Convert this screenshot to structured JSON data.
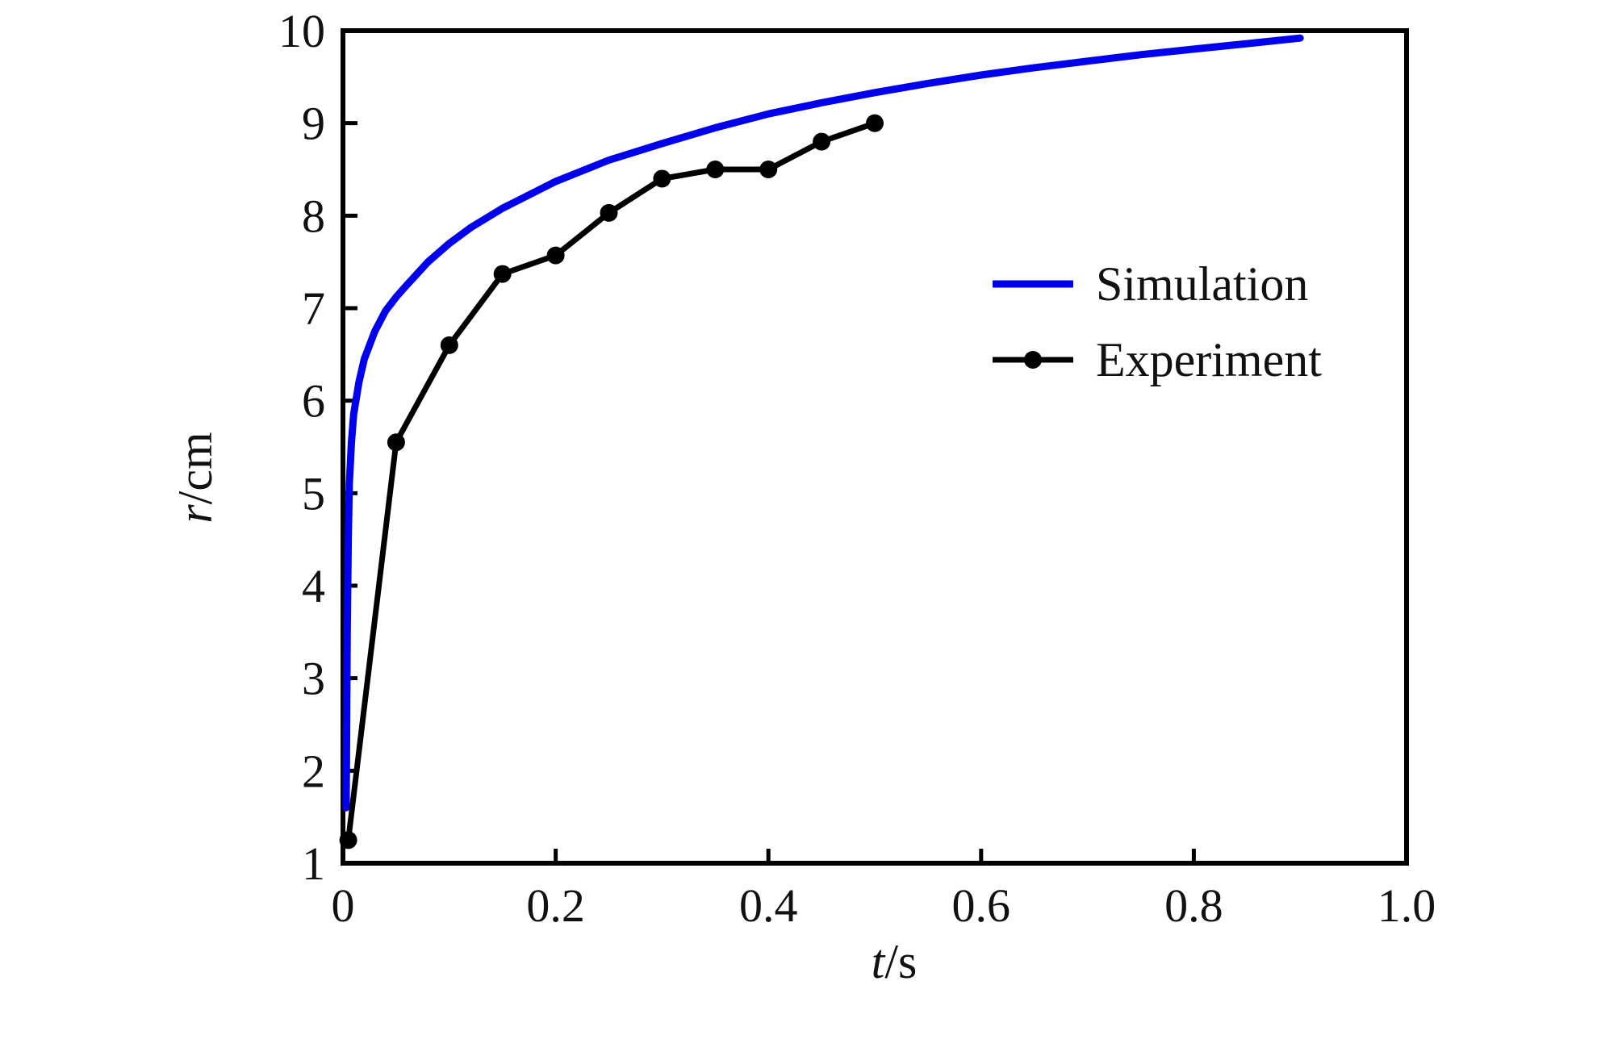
{
  "chart_data": {
    "type": "line",
    "title": "",
    "xlabel_var": "t",
    "xlabel_unit": "/s",
    "ylabel_var": "r",
    "ylabel_unit": "/cm",
    "xlim": [
      0,
      1.0
    ],
    "ylim": [
      1,
      10
    ],
    "xticks": [
      0,
      0.2,
      0.4,
      0.6,
      0.8,
      1.0
    ],
    "xtick_labels": [
      "0",
      "0.2",
      "0.4",
      "0.6",
      "0.8",
      "1.0"
    ],
    "yticks": [
      1,
      2,
      3,
      4,
      5,
      6,
      7,
      8,
      9,
      10
    ],
    "ytick_labels": [
      "1",
      "2",
      "3",
      "4",
      "5",
      "6",
      "7",
      "8",
      "9",
      "10"
    ],
    "grid": false,
    "legend_position": "right",
    "series": [
      {
        "name": "Simulation",
        "color": "#0000ee",
        "marker": "none",
        "x": [
          0.003,
          0.004,
          0.005,
          0.006,
          0.008,
          0.01,
          0.015,
          0.02,
          0.03,
          0.04,
          0.05,
          0.06,
          0.08,
          0.1,
          0.12,
          0.15,
          0.2,
          0.25,
          0.3,
          0.35,
          0.4,
          0.45,
          0.5,
          0.55,
          0.6,
          0.65,
          0.7,
          0.75,
          0.8,
          0.85,
          0.9
        ],
        "y": [
          1.6,
          3.5,
          4.5,
          5.1,
          5.55,
          5.85,
          6.2,
          6.45,
          6.75,
          6.97,
          7.12,
          7.25,
          7.5,
          7.7,
          7.87,
          8.08,
          8.37,
          8.6,
          8.78,
          8.95,
          9.1,
          9.22,
          9.33,
          9.43,
          9.52,
          9.6,
          9.67,
          9.74,
          9.8,
          9.86,
          9.92
        ]
      },
      {
        "name": "Experiment",
        "color": "#000000",
        "marker": "circle",
        "x": [
          0.005,
          0.05,
          0.1,
          0.15,
          0.2,
          0.25,
          0.3,
          0.35,
          0.4,
          0.45,
          0.5
        ],
        "y": [
          1.25,
          5.55,
          6.6,
          7.37,
          7.57,
          8.03,
          8.4,
          8.5,
          8.5,
          8.8,
          9.0
        ]
      }
    ]
  },
  "colors": {
    "axis": "#000000",
    "simulation": "#0000ee",
    "experiment": "#000000",
    "background": "#ffffff"
  }
}
